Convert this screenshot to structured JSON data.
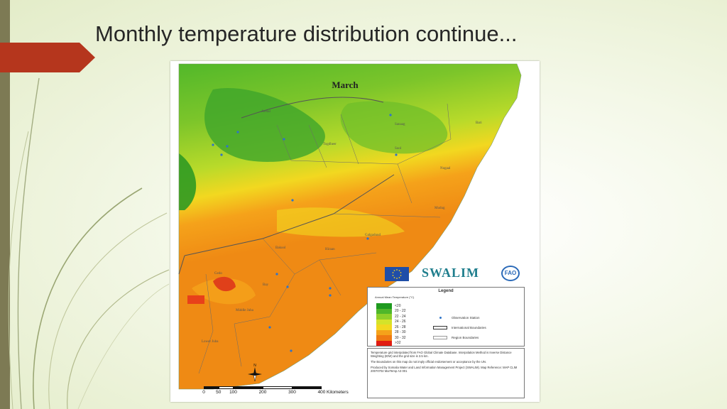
{
  "slide": {
    "title": "Monthly temperature distribution continue...",
    "accent_color": "#b5361d",
    "stripe_color": "#7d7a54"
  },
  "map": {
    "title": "March",
    "regions": [
      "Awdal",
      "Sanaag",
      "Bari",
      "Togdheer",
      "Sool",
      "Nugaal",
      "Mudug",
      "Galgaduud",
      "Hiraan",
      "Bakool",
      "Gedo",
      "Bay",
      "Lower Juba",
      "Middle Juba"
    ],
    "logos": {
      "swalim": "SWALIM",
      "fao": "FAO",
      "eu": "eu-flag-icon"
    },
    "legend": {
      "title": "Legend",
      "subtitle": "Annual Mean Temperature (°C)",
      "classes": [
        {
          "label": "<20",
          "color": "#1f9a1f"
        },
        {
          "label": "20 - 22",
          "color": "#4fb72a"
        },
        {
          "label": "22 - 24",
          "color": "#8fcf2a"
        },
        {
          "label": "24 - 26",
          "color": "#d4e32a"
        },
        {
          "label": "26 - 28",
          "color": "#f2d820"
        },
        {
          "label": "28 - 30",
          "color": "#f5a21a"
        },
        {
          "label": "30 - 32",
          "color": "#ef7a12"
        },
        {
          "label": ">32",
          "color": "#e11c12"
        }
      ],
      "symbols": [
        {
          "label": "Observation Station",
          "kind": "dot"
        },
        {
          "label": "International Boundaries",
          "kind": "intl"
        },
        {
          "label": "Region Boundaries",
          "kind": "region"
        }
      ]
    },
    "notes": [
      "Temperature grid interpolated from FAO Global Climate Database. Interpolation Method is Inverse Distance Weighting (IDW) and the grid size is 3.5 km.",
      "The Boundaries on this map do not imply official endorsement or acceptance by the UN.",
      "Produced by Somalia Water and Land Information Management Project (SWALIM). Map Reference: MAP CLIM 20070702 MarTemp A3 001"
    ],
    "scale": {
      "ticks": [
        "0",
        "50",
        "100",
        "200",
        "300",
        "400"
      ],
      "unit": "Kilometers"
    },
    "north_label": "N"
  }
}
